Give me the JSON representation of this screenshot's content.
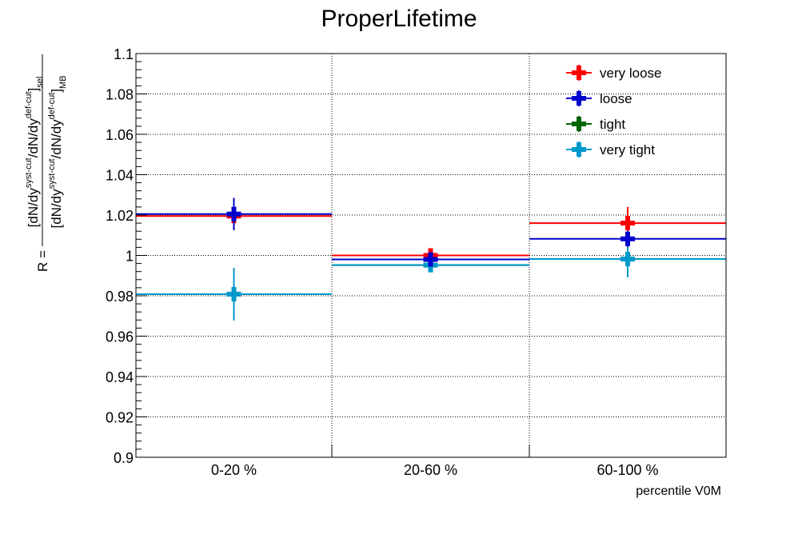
{
  "chart_data": {
    "type": "scatter",
    "title": "ProperLifetime",
    "xlabel": "percentile V0M",
    "ylabel": {
      "prefix": "R =",
      "numerator": {
        "open": "[dN/dy",
        "sup1": "syst-cut",
        "mid": "/dN/dy",
        "sup2": "def-cut",
        "close": "]",
        "sub": "sel"
      },
      "denominator": {
        "open": "[dN/dy",
        "sup1": "syst-cut",
        "mid": "/dN/dy",
        "sup2": "def-cut",
        "close": "]",
        "sub": "MB"
      }
    },
    "categories": [
      "0-20 %",
      "20-60 %",
      "60-100 %"
    ],
    "ylim": [
      0.9,
      1.1
    ],
    "yticks": [
      "0.9",
      "0.92",
      "0.94",
      "0.96",
      "0.98",
      "1",
      "1.02",
      "1.04",
      "1.06",
      "1.08",
      "1.1"
    ],
    "grid": true,
    "legend_position": "top-right",
    "series": [
      {
        "name": "very loose",
        "color": "#ff0000",
        "values": [
          1.0195,
          1.0,
          1.016
        ],
        "errors": [
          0.003,
          0.003,
          0.008
        ]
      },
      {
        "name": "loose",
        "color": "#0000cc",
        "values": [
          1.0205,
          0.998,
          1.0082
        ],
        "errors": [
          0.008,
          0.003,
          0.004
        ]
      },
      {
        "name": "tight",
        "color": "#006600",
        "values": [
          0.9808,
          0.9952,
          0.9982
        ],
        "errors": [
          0.013,
          0.003,
          0.009
        ]
      },
      {
        "name": "very tight",
        "color": "#0099cc",
        "values": [
          0.9808,
          0.9952,
          0.9982
        ],
        "errors": [
          0.013,
          0.003,
          0.009
        ]
      }
    ]
  }
}
